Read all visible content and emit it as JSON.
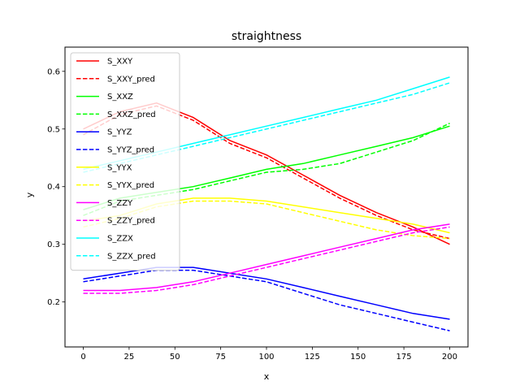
{
  "chart_data": {
    "type": "line",
    "title": "straightness",
    "xlabel": "x",
    "ylabel": "y",
    "xlim": [
      -10,
      210
    ],
    "ylim": [
      0.122,
      0.642
    ],
    "xticks": [
      0,
      25,
      50,
      75,
      100,
      125,
      150,
      175,
      200
    ],
    "yticks": [
      0.2,
      0.3,
      0.4,
      0.5,
      0.6
    ],
    "grid": false,
    "legend_position": "upper-left",
    "x": [
      0,
      20,
      40,
      60,
      80,
      100,
      120,
      140,
      160,
      180,
      200
    ],
    "series": [
      {
        "name": "S_XXY",
        "color": "#ff0000",
        "dash": false,
        "values": [
          0.5,
          0.53,
          0.545,
          0.52,
          0.48,
          0.455,
          0.42,
          0.385,
          0.355,
          0.33,
          0.3
        ]
      },
      {
        "name": "S_XXY_pred",
        "color": "#ff0000",
        "dash": true,
        "values": [
          0.49,
          0.525,
          0.54,
          0.515,
          0.475,
          0.45,
          0.415,
          0.38,
          0.35,
          0.325,
          0.31
        ]
      },
      {
        "name": "S_XXZ",
        "color": "#00ff00",
        "dash": false,
        "values": [
          0.36,
          0.38,
          0.39,
          0.4,
          0.415,
          0.43,
          0.44,
          0.455,
          0.47,
          0.485,
          0.505
        ]
      },
      {
        "name": "S_XXZ_pred",
        "color": "#00ff00",
        "dash": true,
        "values": [
          0.35,
          0.375,
          0.385,
          0.395,
          0.41,
          0.425,
          0.43,
          0.44,
          0.46,
          0.48,
          0.51
        ]
      },
      {
        "name": "S_YYZ",
        "color": "#0000ff",
        "dash": false,
        "values": [
          0.24,
          0.25,
          0.26,
          0.26,
          0.25,
          0.24,
          0.225,
          0.21,
          0.195,
          0.18,
          0.17
        ]
      },
      {
        "name": "S_YYZ_pred",
        "color": "#0000ff",
        "dash": true,
        "values": [
          0.235,
          0.245,
          0.255,
          0.255,
          0.245,
          0.235,
          0.215,
          0.195,
          0.18,
          0.165,
          0.15
        ]
      },
      {
        "name": "S_YYX",
        "color": "#ffff00",
        "dash": false,
        "values": [
          0.34,
          0.35,
          0.37,
          0.38,
          0.38,
          0.375,
          0.365,
          0.355,
          0.345,
          0.335,
          0.32
        ]
      },
      {
        "name": "S_YYX_pred",
        "color": "#ffff00",
        "dash": true,
        "values": [
          0.33,
          0.345,
          0.365,
          0.375,
          0.375,
          0.37,
          0.355,
          0.34,
          0.325,
          0.315,
          0.31
        ]
      },
      {
        "name": "S_ZZY",
        "color": "#ff00ff",
        "dash": false,
        "values": [
          0.22,
          0.22,
          0.225,
          0.235,
          0.25,
          0.265,
          0.28,
          0.295,
          0.31,
          0.325,
          0.335
        ]
      },
      {
        "name": "S_ZZY_pred",
        "color": "#ff00ff",
        "dash": true,
        "values": [
          0.215,
          0.215,
          0.22,
          0.23,
          0.245,
          0.26,
          0.275,
          0.29,
          0.305,
          0.32,
          0.33
        ]
      },
      {
        "name": "S_ZZX",
        "color": "#00ffff",
        "dash": false,
        "values": [
          0.43,
          0.445,
          0.46,
          0.475,
          0.49,
          0.505,
          0.52,
          0.535,
          0.55,
          0.57,
          0.59
        ]
      },
      {
        "name": "S_ZZX_pred",
        "color": "#00ffff",
        "dash": true,
        "values": [
          0.425,
          0.44,
          0.455,
          0.47,
          0.485,
          0.5,
          0.515,
          0.53,
          0.545,
          0.56,
          0.58
        ]
      }
    ]
  }
}
